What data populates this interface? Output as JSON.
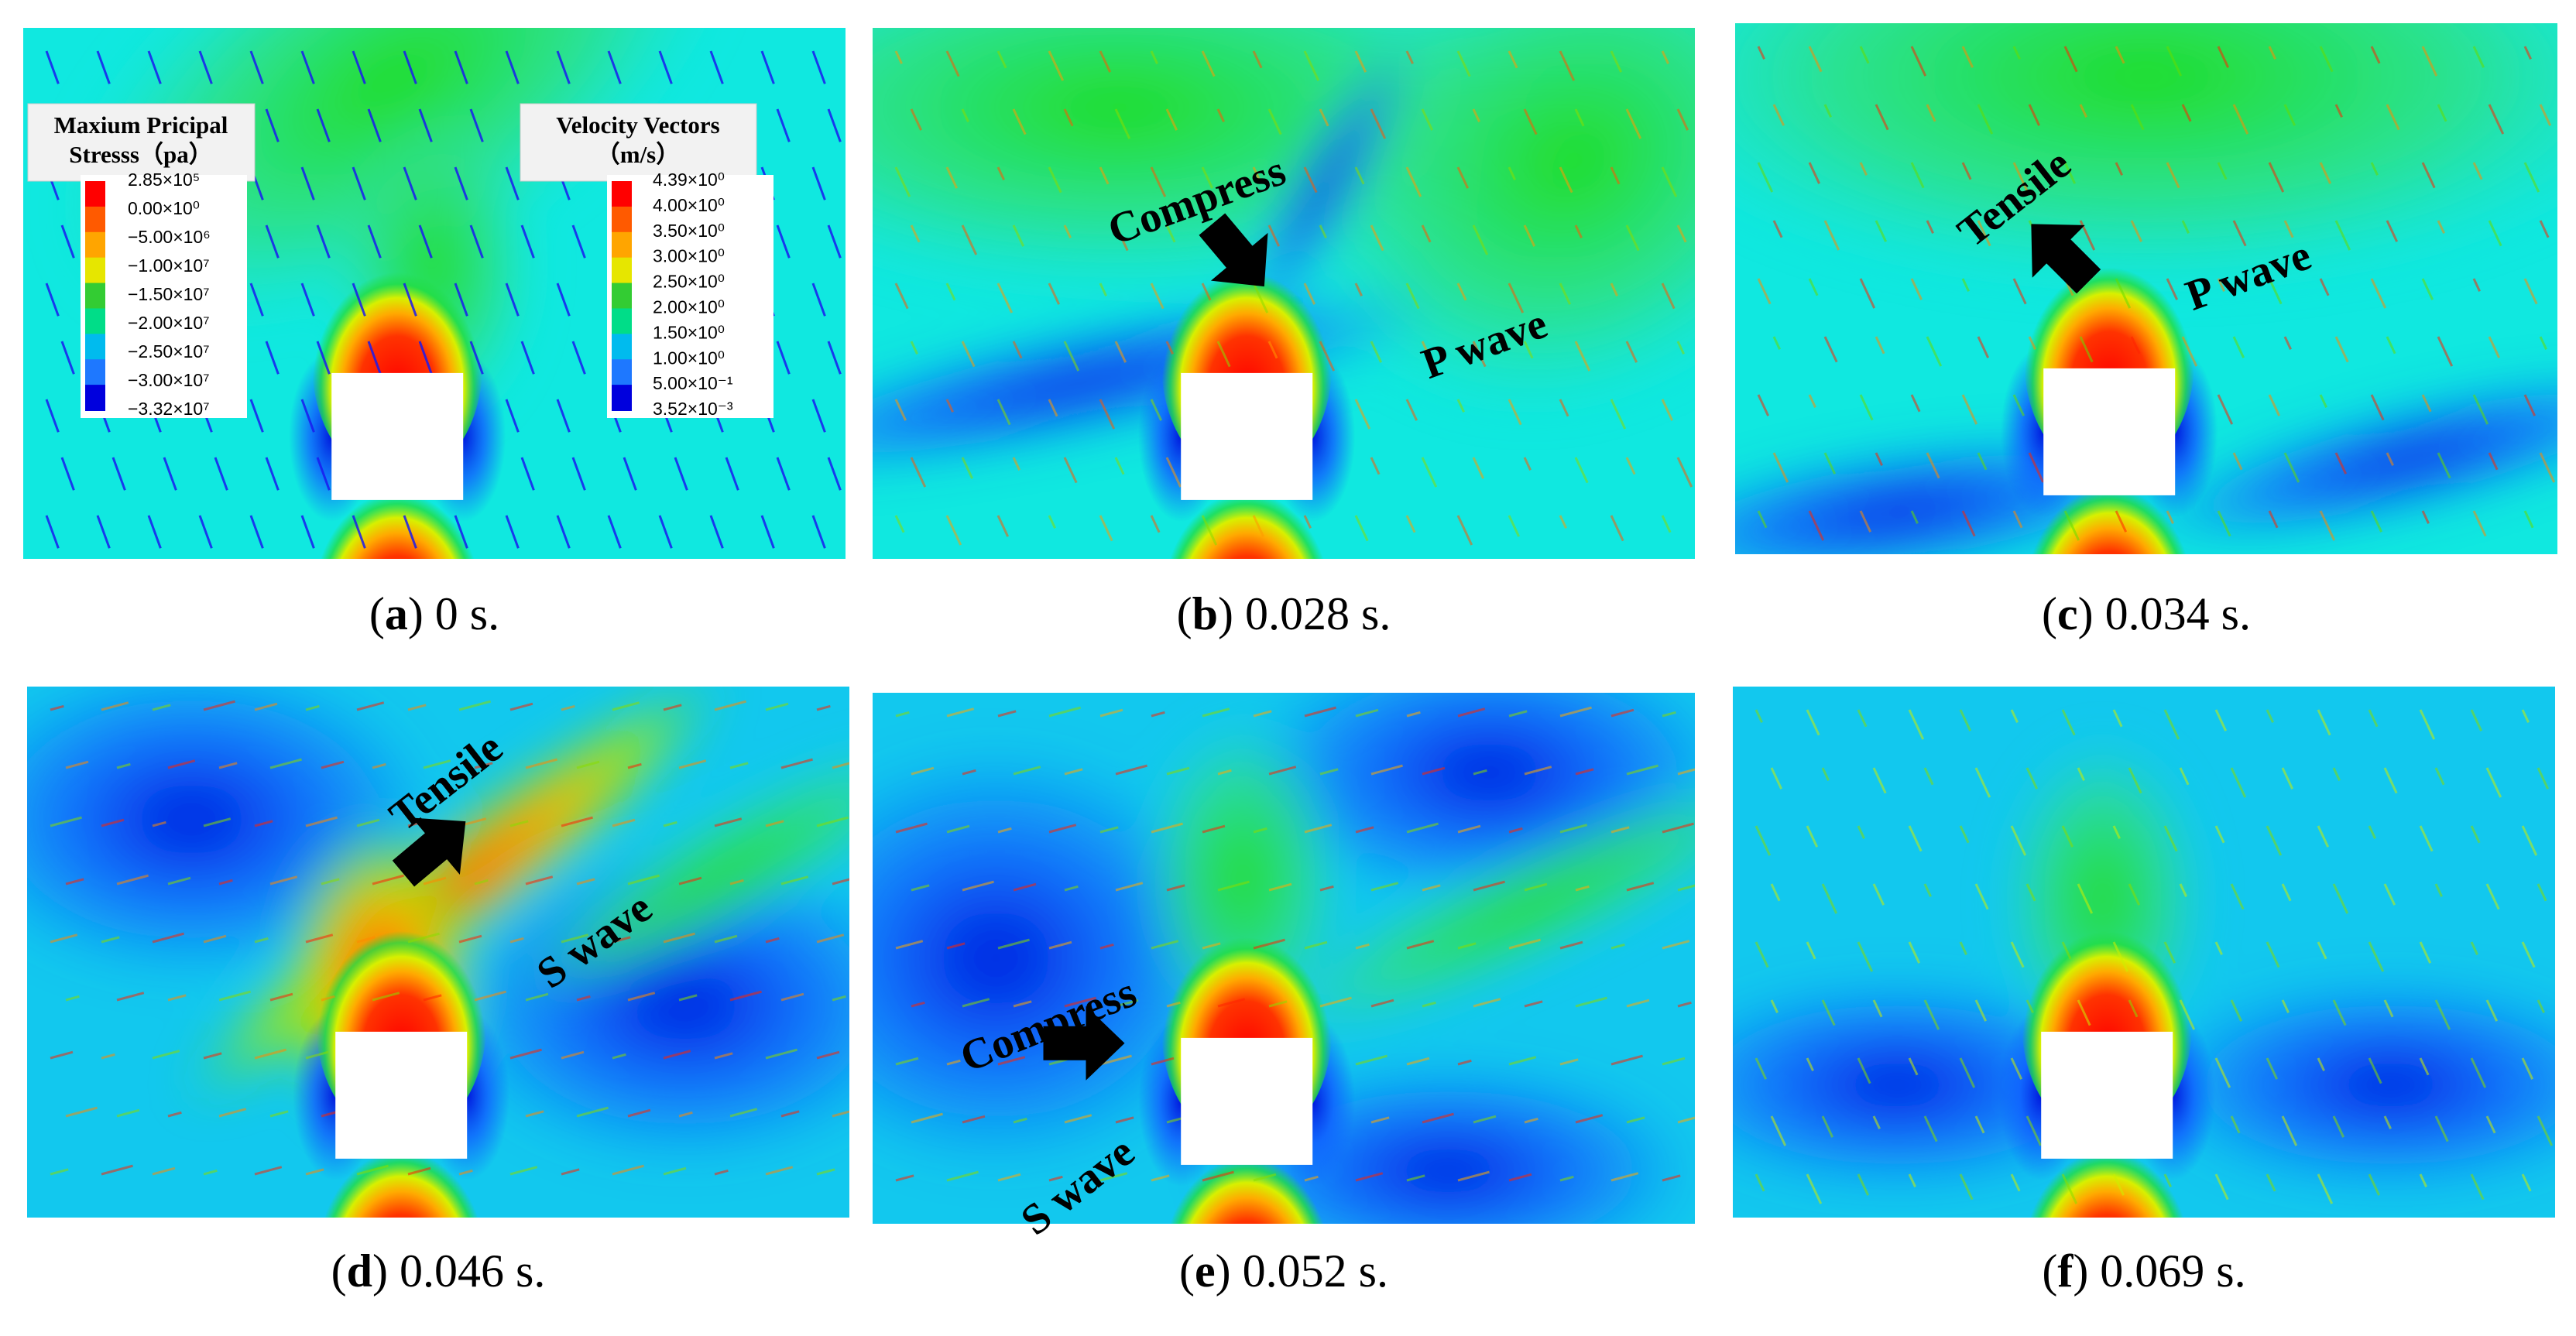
{
  "panels": [
    {
      "caption": [
        "(",
        "a",
        ") 0 s."
      ],
      "annotations": []
    },
    {
      "caption": [
        "(",
        "b",
        ") 0.028 s."
      ],
      "annotations": [
        "Compress",
        "P wave"
      ]
    },
    {
      "caption": [
        "(",
        "c",
        ") 0.034 s."
      ],
      "annotations": [
        "Tensile",
        "P wave"
      ]
    },
    {
      "caption": [
        "(",
        "d",
        ") 0.046 s."
      ],
      "annotations": [
        "Tensile",
        "S wave"
      ]
    },
    {
      "caption": [
        "(",
        "e",
        ") 0.052 s."
      ],
      "annotations": [
        "Compress",
        "S wave"
      ]
    },
    {
      "caption": [
        "(",
        "f",
        ") 0.069 s."
      ],
      "annotations": []
    }
  ],
  "legends": [
    {
      "title": [
        "Maxium Pricipal",
        "Stresss（pa）"
      ],
      "labels": [
        "2.85×10⁵",
        "0.00×10⁰",
        "−5.00×10⁶",
        "−1.00×10⁷",
        "−1.50×10⁷",
        "−2.00×10⁷",
        "−2.50×10⁷",
        "−3.00×10⁷",
        "−3.32×10⁷"
      ],
      "colors": [
        "#ff0000",
        "#ff5a00",
        "#ffa500",
        "#e6e600",
        "#33cc33",
        "#00dd88",
        "#00bbee",
        "#1e78ff",
        "#0000dd"
      ]
    },
    {
      "title": [
        "Velocity Vectors",
        "（m/s）"
      ],
      "labels": [
        "4.39×10⁰",
        "4.00×10⁰",
        "3.50×10⁰",
        "3.00×10⁰",
        "2.50×10⁰",
        "2.00×10⁰",
        "1.50×10⁰",
        "1.00×10⁰",
        "5.00×10⁻¹",
        "3.52×10⁻³"
      ],
      "colors": [
        "#ff0000",
        "#ff5a00",
        "#ffa500",
        "#e6e600",
        "#33cc33",
        "#00dd88",
        "#00bbee",
        "#1e78ff",
        "#0000dd"
      ]
    }
  ]
}
